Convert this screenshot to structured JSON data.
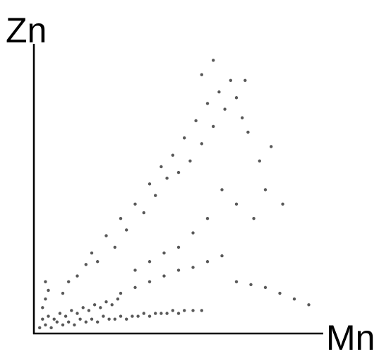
{
  "chart_data": {
    "type": "scatter",
    "x_label": "Mn",
    "y_label": "Zn",
    "color": "#111111",
    "xlim": [
      0,
      100
    ],
    "ylim": [
      0,
      100
    ],
    "x": [
      2,
      4,
      6,
      8,
      10,
      12,
      14,
      16,
      18,
      20,
      22,
      24,
      26,
      28,
      30,
      32,
      34,
      36,
      38,
      40,
      42,
      44,
      46,
      48,
      50,
      52,
      55,
      58,
      3,
      5,
      7,
      9,
      11,
      13,
      15,
      17,
      19,
      21,
      23,
      25,
      27,
      29,
      4,
      5,
      4,
      3,
      30,
      35,
      40,
      45,
      50,
      55,
      60,
      65,
      70,
      75,
      80,
      85,
      90,
      95,
      10,
      12,
      15,
      18,
      20,
      22,
      25,
      28,
      30,
      32,
      35,
      38,
      40,
      42,
      44,
      46,
      48,
      50,
      52,
      54,
      56,
      58,
      60,
      62,
      64,
      66,
      68,
      70,
      72,
      74,
      78,
      80,
      76,
      70,
      65,
      60,
      55,
      50,
      45,
      40,
      35,
      58,
      62,
      82,
      86,
      73
    ],
    "values": [
      2,
      3,
      2,
      4,
      3,
      4,
      3,
      5,
      4,
      5,
      4,
      6,
      5,
      5,
      6,
      5,
      6,
      6,
      7,
      6,
      7,
      7,
      7,
      8,
      7,
      8,
      8,
      8,
      5,
      6,
      5,
      7,
      6,
      8,
      7,
      9,
      8,
      10,
      9,
      11,
      10,
      12,
      12,
      15,
      18,
      9,
      14,
      16,
      18,
      20,
      22,
      23,
      25,
      27,
      18,
      17,
      16,
      14,
      12,
      10,
      14,
      18,
      20,
      24,
      28,
      25,
      34,
      30,
      40,
      36,
      45,
      42,
      52,
      48,
      58,
      54,
      62,
      56,
      68,
      60,
      74,
      66,
      80,
      72,
      84,
      78,
      88,
      82,
      75,
      70,
      60,
      50,
      40,
      45,
      50,
      40,
      35,
      30,
      28,
      25,
      22,
      90,
      95,
      65,
      45,
      88
    ]
  }
}
